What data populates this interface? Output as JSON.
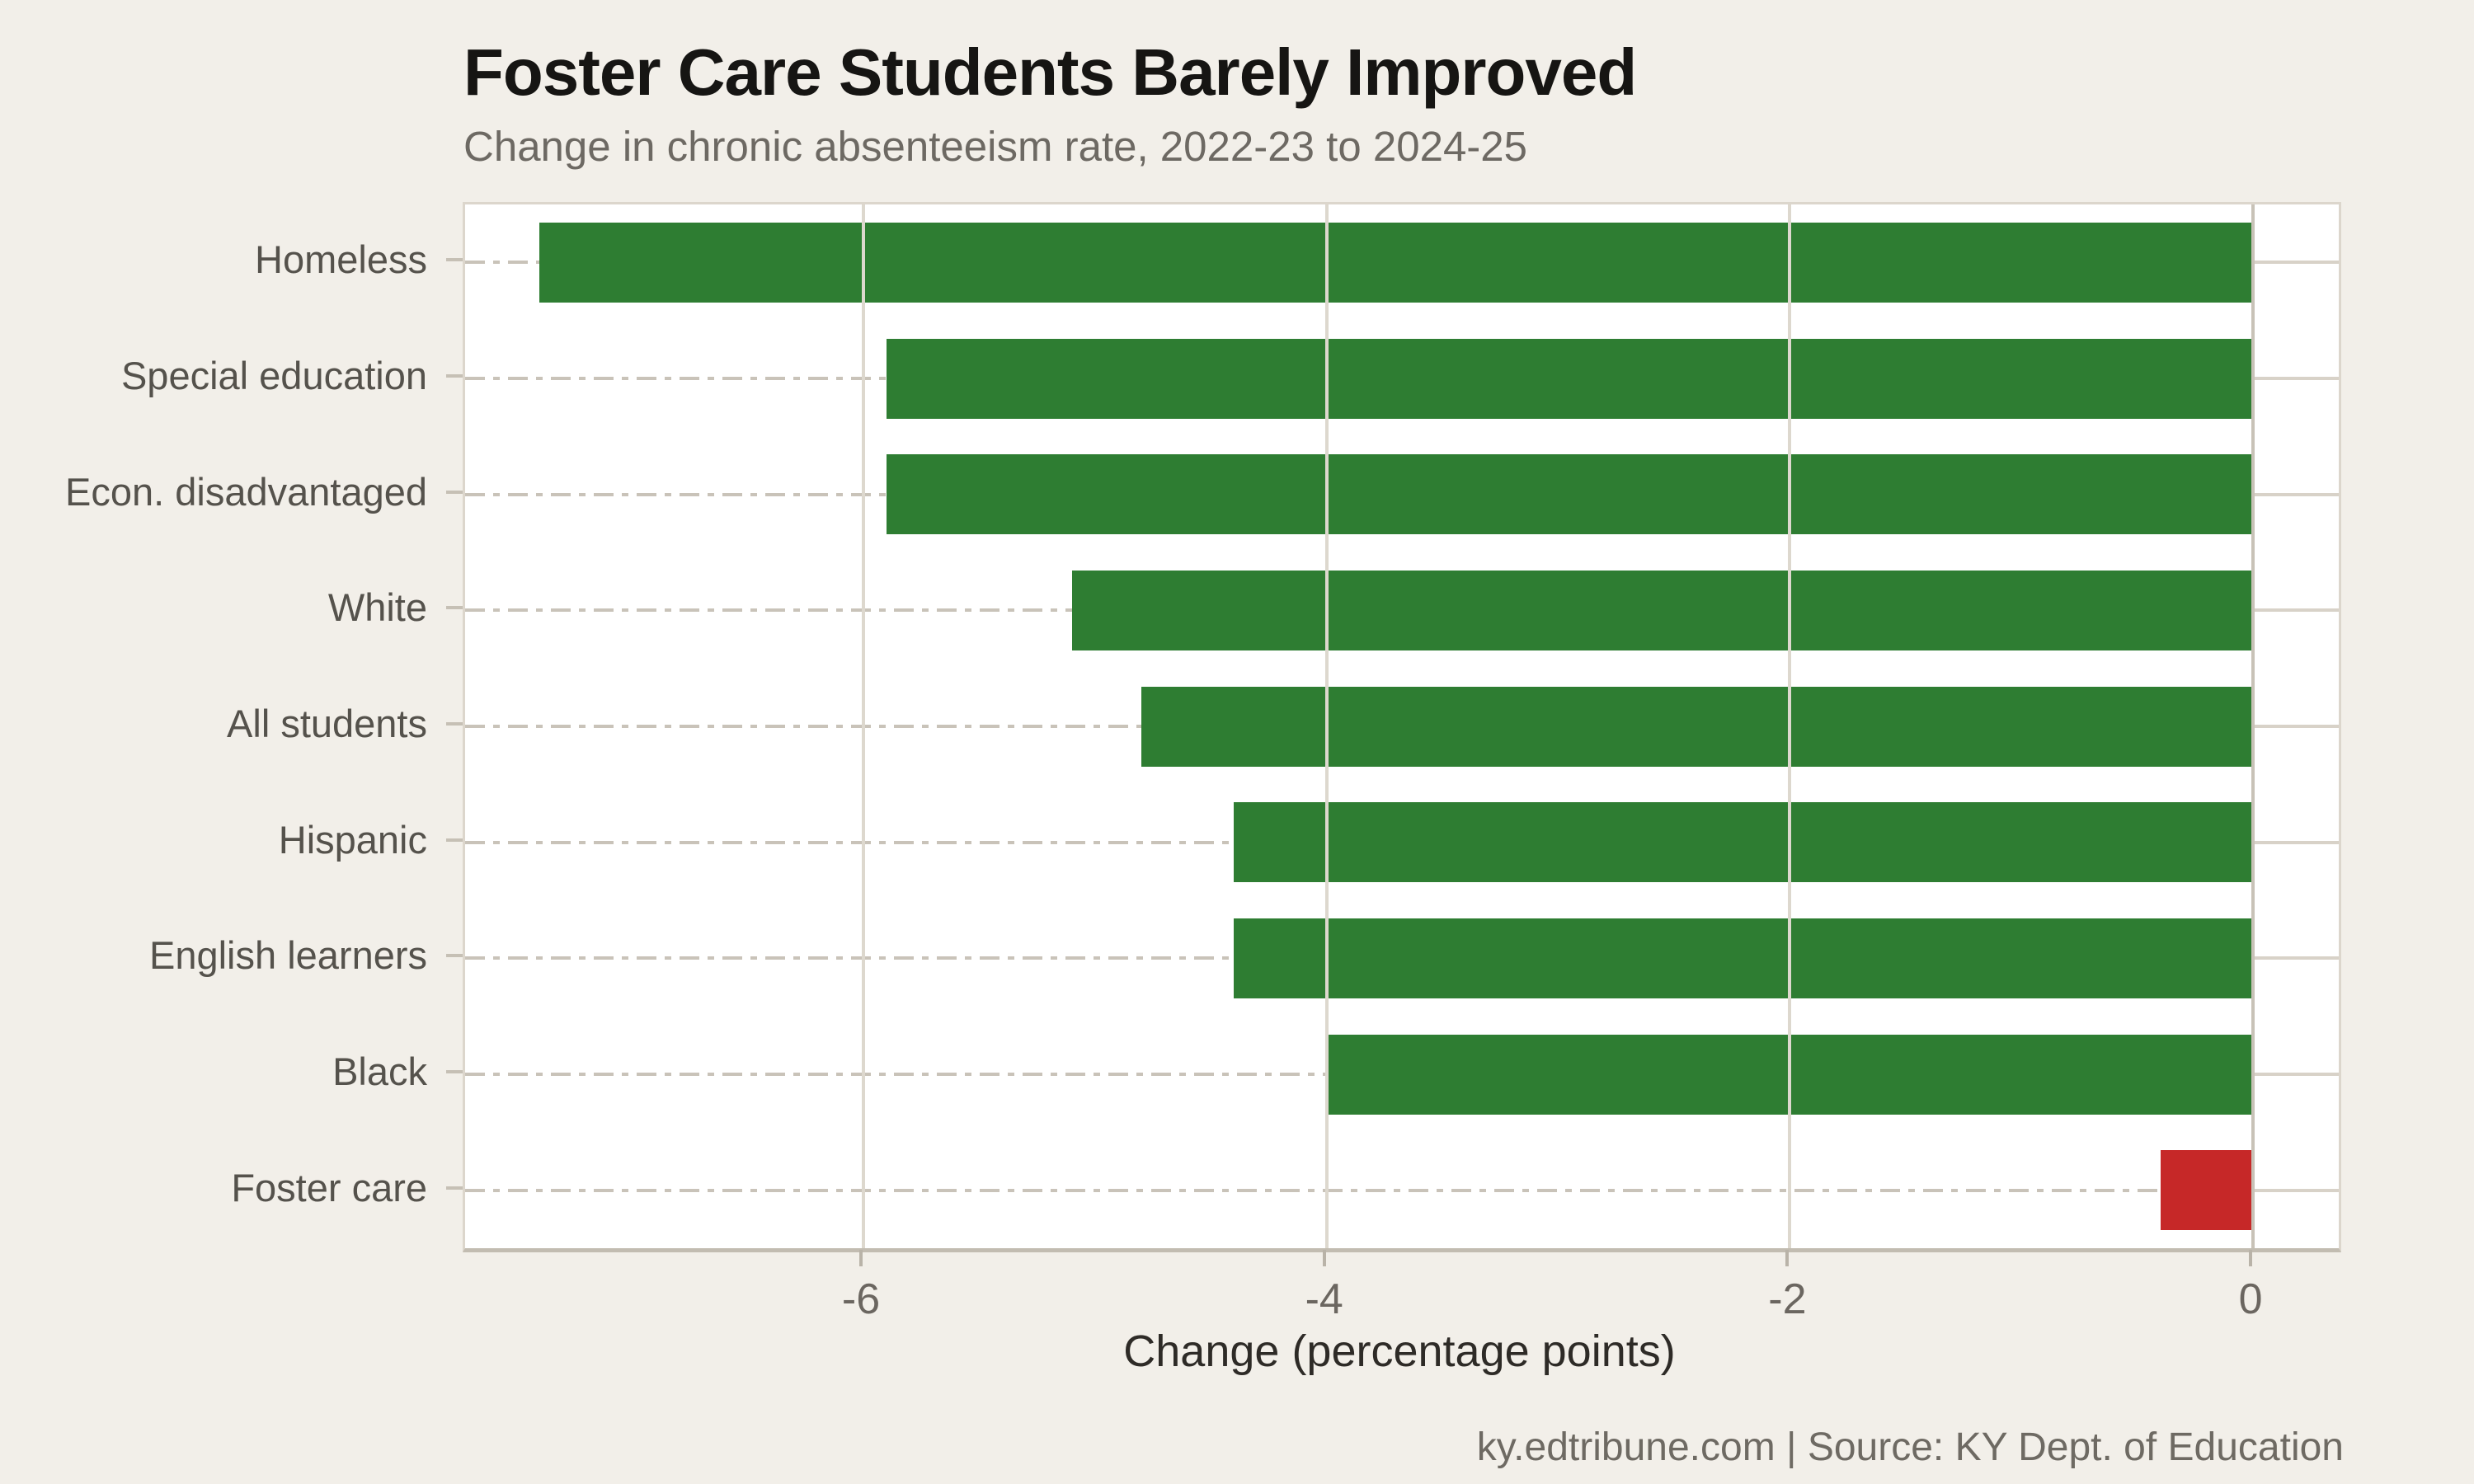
{
  "page": {
    "background_color": "#f2efe9",
    "plot_background_color": "#ffffff"
  },
  "header": {
    "title": "Foster Care Students Barely Improved",
    "subtitle": "Change in chronic absenteeism rate, 2022-23 to 2024-25"
  },
  "footer": {
    "credit": "ky.edtribune.com | Source: KY Dept. of Education"
  },
  "chart_data": {
    "type": "bar",
    "orientation": "horizontal",
    "title": "Foster Care Students Barely Improved",
    "subtitle": "Change in chronic absenteeism rate, 2022-23 to 2024-25",
    "categories": [
      "Homeless",
      "Special education",
      "Econ. disadvantaged",
      "White",
      "All students",
      "Hispanic",
      "English learners",
      "Black",
      "Foster care"
    ],
    "values": [
      -7.4,
      -5.9,
      -5.9,
      -5.1,
      -4.8,
      -4.4,
      -4.4,
      -4.0,
      -0.4
    ],
    "xlabel": "Change (percentage points)",
    "ylabel": "",
    "x_ticks": [
      -6,
      -4,
      -2,
      0
    ],
    "xlim": [
      -7.72,
      0.37
    ],
    "grid": true,
    "legend": false,
    "colors": {
      "bar_default": "#2e7d32",
      "bar_highlight": "#c62828",
      "highlight_category": "Foster care",
      "gridline": "#ddd8ce",
      "zero_line": "#c8c2b7",
      "leader_line": "#c9c3b9"
    }
  }
}
